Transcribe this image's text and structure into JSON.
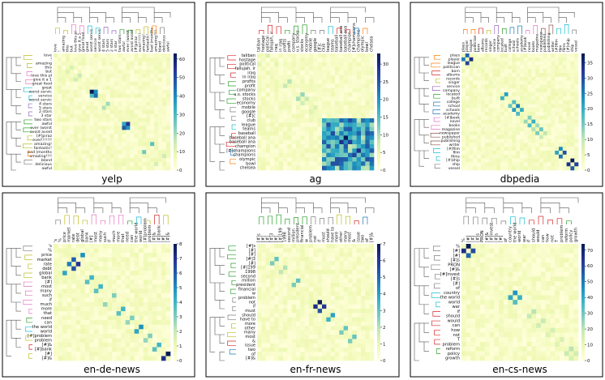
{
  "figure": {
    "description_note": ""
  },
  "colors": {
    "cmap": [
      "#ffffd9",
      "#edf8b1",
      "#c7e9b4",
      "#7fcdbb",
      "#41b6c4",
      "#1d91c0",
      "#225ea8",
      "#253494",
      "#081d58"
    ],
    "dendro": [
      "#1f77b4",
      "#ff7f0e",
      "#2ca02c",
      "#d62728",
      "#9467bd",
      "#8c564b",
      "#e377c2",
      "#7f7f7f",
      "#bcbd22",
      "#17becf"
    ]
  },
  "chart_data": [
    {
      "type": "heatmap",
      "title": "yelp",
      "colorbar_ticks": [
        0,
        10,
        20,
        30,
        40,
        50,
        60
      ],
      "vmax": 63,
      "labels": [
        "love",
        "!",
        "amazing",
        "this",
        "but",
        "love this pl",
        "give it a 1",
        "great food",
        "great",
        "worst servic",
        "service",
        "worst servic",
        "4 stars",
        "5 stars",
        "2 stars",
        "3 star",
        "two stars",
        "awful",
        "ever (worst",
        "avoid avoid",
        "[#]piraz",
        "ever!!!!!!!",
        "amazing!",
        "fantastic!",
        "bad (months",
        "amazing!!!!",
        "bland",
        "delicious",
        "awful"
      ],
      "label_colors": [
        8,
        8,
        8,
        6,
        6,
        6,
        6,
        6,
        9,
        9,
        9,
        9,
        4,
        4,
        4,
        4,
        2,
        2,
        2,
        2,
        8,
        8,
        8,
        8,
        1,
        1,
        7,
        7,
        7
      ],
      "hot_cells": [
        [
          9,
          9,
          63
        ],
        [
          10,
          10,
          45
        ],
        [
          9,
          10,
          40
        ],
        [
          17,
          18,
          55
        ],
        [
          18,
          17,
          48
        ],
        [
          17,
          17,
          35
        ],
        [
          18,
          18,
          38
        ],
        [
          10,
          9,
          30
        ],
        [
          12,
          13,
          20
        ],
        [
          13,
          12,
          18
        ],
        [
          22,
          24,
          28
        ],
        [
          5,
          6,
          15
        ],
        [
          25,
          27,
          14
        ],
        [
          3,
          4,
          12
        ]
      ]
    },
    {
      "type": "heatmap",
      "title": "ag",
      "colorbar_ticks": [
        0,
        5,
        10,
        15,
        20,
        25,
        30
      ],
      "vmax": 33,
      "labels": [
        "taliban",
        "hostage",
        "political",
        "fallujah, ir",
        "iraq",
        "in iraq",
        "profits",
        "profit",
        "company",
        "u.s. stocks",
        "stocks",
        "economy",
        "mobile",
        "google",
        "[#]c",
        "club",
        "league",
        "teams",
        "baseball",
        "baseball ana",
        "baseball ana",
        "champion",
        "[#]champions",
        "champions",
        "olympic",
        "bowl",
        "chelsea"
      ],
      "label_colors": [
        3,
        3,
        3,
        3,
        3,
        3,
        2,
        2,
        2,
        2,
        2,
        2,
        7,
        7,
        7,
        9,
        9,
        9,
        3,
        3,
        3,
        0,
        0,
        0,
        1,
        1,
        1
      ],
      "hot_cells": [
        [
          0,
          2,
          6
        ],
        [
          2,
          4,
          5
        ],
        [
          6,
          7,
          9
        ],
        [
          9,
          10,
          11
        ],
        [
          10,
          11,
          8
        ],
        [
          12,
          13,
          6
        ],
        [
          15,
          16,
          14
        ],
        [
          18,
          19,
          22
        ],
        [
          19,
          20,
          33
        ],
        [
          20,
          21,
          28
        ],
        [
          22,
          23,
          30
        ],
        [
          24,
          25,
          26
        ],
        [
          16,
          18,
          18
        ],
        [
          21,
          24,
          20
        ],
        [
          17,
          22,
          17
        ]
      ],
      "block": [
        15,
        26
      ]
    },
    {
      "type": "heatmap",
      "title": "dbpedia",
      "colorbar_ticks": [
        0,
        5,
        10,
        15,
        20,
        25,
        30,
        35
      ],
      "vmax": 38,
      "labels": [
        "plays",
        "player",
        "league",
        "politician",
        "born",
        "albums",
        "records",
        "singer",
        "service",
        "company",
        "located",
        "built",
        "college",
        "school",
        "schools",
        "academy",
        "[#]book",
        "novel",
        "books",
        "magazine",
        "newspaper",
        "published",
        "publishing",
        "writer",
        "[#]film",
        "film",
        "films",
        "[#]ship",
        "ship",
        "vessel"
      ],
      "label_colors": [
        1,
        1,
        1,
        3,
        3,
        8,
        8,
        8,
        4,
        4,
        2,
        2,
        0,
        0,
        0,
        0,
        6,
        6,
        6,
        5,
        5,
        5,
        5,
        5,
        9,
        9,
        9,
        7,
        7,
        7
      ],
      "hot_cells": [
        [
          0,
          1,
          28
        ],
        [
          1,
          2,
          35
        ],
        [
          10,
          11,
          22
        ],
        [
          12,
          13,
          18
        ],
        [
          13,
          14,
          25
        ],
        [
          14,
          15,
          20
        ],
        [
          16,
          17,
          14
        ],
        [
          17,
          18,
          20
        ],
        [
          18,
          19,
          12
        ],
        [
          19,
          20,
          16
        ],
        [
          20,
          21,
          10
        ],
        [
          24,
          25,
          24
        ],
        [
          25,
          26,
          30
        ],
        [
          27,
          28,
          38
        ],
        [
          28,
          29,
          32
        ]
      ]
    },
    {
      "type": "heatmap",
      "title": "en-de-news",
      "colorbar_ticks": [
        0,
        1,
        2,
        3,
        4,
        5,
        6,
        7,
        8
      ],
      "vmax": 8,
      "labels": [
        "'s",
        "%",
        "price",
        "market",
        "rate",
        "debt",
        "global",
        "bank",
        "[#]",
        "most",
        "many",
        "such",
        "if",
        "much",
        "more",
        "that",
        "need",
        "can",
        "the world",
        "world",
        "[#]problem",
        "problem",
        "[#]&",
        "[#]bank",
        "[#]",
        "[#]&"
      ],
      "label_colors": [
        7,
        8,
        8,
        8,
        8,
        8,
        8,
        8,
        6,
        6,
        6,
        6,
        6,
        6,
        6,
        6,
        2,
        2,
        9,
        9,
        8,
        8,
        3,
        3,
        8,
        8
      ],
      "hot_cells": [
        [
          3,
          4,
          6
        ],
        [
          4,
          5,
          7
        ],
        [
          2,
          6,
          5
        ],
        [
          9,
          10,
          4
        ],
        [
          11,
          13,
          3
        ],
        [
          14,
          15,
          4
        ],
        [
          16,
          17,
          3
        ],
        [
          18,
          19,
          5
        ],
        [
          20,
          21,
          3
        ],
        [
          22,
          23,
          4
        ],
        [
          24,
          25,
          8
        ],
        [
          7,
          8,
          4
        ]
      ]
    },
    {
      "type": "heatmap",
      "title": "en-fr-news",
      "colorbar_ticks": [
        0,
        1,
        2,
        3,
        4,
        5,
        6,
        7
      ],
      "vmax": 7,
      "labels": [
        "[#]s",
        "[#]",
        "[#]",
        "[#]3",
        "[#]",
        "[#]199",
        "1998",
        "second",
        "million",
        "president",
        "financial",
        "w",
        "problem",
        "not",
        "if",
        "must",
        "should",
        "have to",
        "more",
        "other",
        "many",
        "most",
        "&",
        "issue",
        "two",
        "of",
        "[#]&"
      ],
      "label_colors": [
        2,
        2,
        2,
        2,
        2,
        2,
        2,
        2,
        2,
        2,
        2,
        2,
        7,
        7,
        7,
        7,
        7,
        7,
        8,
        8,
        8,
        8,
        3,
        3,
        0,
        0,
        8
      ],
      "hot_cells": [
        [
          13,
          14,
          7
        ],
        [
          14,
          15,
          6
        ],
        [
          3,
          4,
          3
        ],
        [
          8,
          9,
          3
        ],
        [
          16,
          17,
          4
        ],
        [
          19,
          20,
          3
        ],
        [
          21,
          22,
          3
        ],
        [
          5,
          6,
          2
        ]
      ]
    },
    {
      "type": "heatmap",
      "title": "en-cs-news",
      "colorbar_ticks": [
        0,
        10,
        20,
        30,
        40,
        50,
        60,
        70
      ],
      "vmax": 74,
      "labels": [
        "%",
        "[#]",
        "[#]",
        "[#]s",
        "PRON",
        "[#]&",
        "[#]invest",
        "[#]s",
        "[#]",
        "of",
        "country",
        "the world",
        "world",
        "war",
        "if",
        "should",
        "would",
        "can",
        "how",
        "not",
        "T",
        "problem",
        "reform",
        "policy",
        "growth"
      ],
      "label_colors": [
        7,
        7,
        7,
        7,
        7,
        7,
        7,
        7,
        7,
        9,
        9,
        9,
        9,
        9,
        3,
        3,
        3,
        3,
        3,
        3,
        3,
        3,
        2,
        2,
        2
      ],
      "hot_cells": [
        [
          0,
          1,
          74
        ],
        [
          1,
          2,
          60
        ],
        [
          10,
          11,
          45
        ],
        [
          11,
          12,
          38
        ],
        [
          14,
          15,
          20
        ],
        [
          16,
          17,
          18
        ],
        [
          18,
          19,
          15
        ],
        [
          20,
          21,
          14
        ],
        [
          22,
          23,
          20
        ],
        [
          23,
          24,
          16
        ]
      ]
    }
  ]
}
